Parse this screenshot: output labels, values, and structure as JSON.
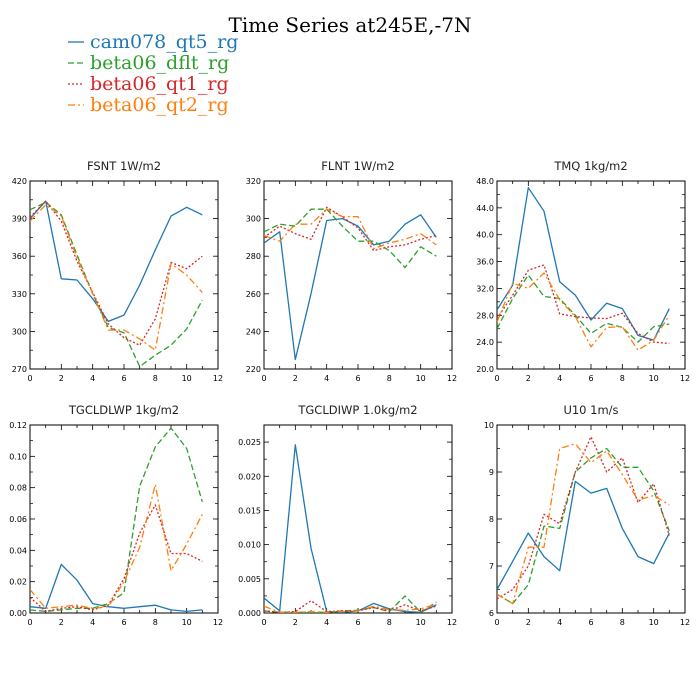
{
  "title": "Time Series at245E,-7N",
  "colors": {
    "cam078_qt5_rg": "#1f77b4",
    "beta06_dflt_rg": "#2ca02c",
    "beta06_qt1_rg": "#d62728",
    "beta06_qt2_rg": "#ff7f0e"
  },
  "legend": [
    {
      "name": "cam078_qt5_rg",
      "color": "#1f77b4",
      "dash": "solid"
    },
    {
      "name": "beta06_dflt_rg",
      "color": "#2ca02c",
      "dash": "dashed"
    },
    {
      "name": "beta06_qt1_rg",
      "color": "#d62728",
      "dash": "dotted"
    },
    {
      "name": "beta06_qt2_rg",
      "color": "#ff7f0e",
      "dash": "dashdot"
    }
  ],
  "chart_data": [
    {
      "type": "line",
      "title": "FSNT  1W/m2",
      "x": [
        0,
        1,
        2,
        3,
        4,
        5,
        6,
        7,
        8,
        9,
        10,
        11
      ],
      "xlim": [
        0,
        12
      ],
      "xticks": [
        "0",
        "2",
        "4",
        "6",
        "8",
        "10",
        "12"
      ],
      "ylim": [
        270,
        420
      ],
      "yticks": [
        "270",
        "300",
        "330",
        "360",
        "390",
        "420"
      ],
      "series": [
        {
          "name": "cam078_qt5_rg",
          "values": [
            390,
            404,
            342,
            341,
            326,
            308,
            313,
            337,
            365,
            392,
            399,
            393
          ]
        },
        {
          "name": "beta06_dflt_rg",
          "values": [
            397,
            403,
            393,
            361,
            330,
            303,
            299,
            272,
            281,
            289,
            302,
            325
          ]
        },
        {
          "name": "beta06_qt1_rg",
          "values": [
            391,
            404,
            388,
            356,
            331,
            306,
            295,
            289,
            310,
            355,
            350,
            360
          ]
        },
        {
          "name": "beta06_qt2_rg",
          "values": [
            388,
            401,
            392,
            359,
            330,
            301,
            301,
            294,
            285,
            354,
            345,
            331
          ]
        }
      ]
    },
    {
      "type": "line",
      "title": "FLNT  1W/m2",
      "x": [
        0,
        1,
        2,
        3,
        4,
        5,
        6,
        7,
        8,
        9,
        10,
        11
      ],
      "xlim": [
        0,
        12
      ],
      "xticks": [
        "0",
        "2",
        "4",
        "6",
        "8",
        "10",
        "12"
      ],
      "ylim": [
        220,
        320
      ],
      "yticks": [
        "220",
        "240",
        "260",
        "280",
        "300",
        "320"
      ],
      "series": [
        {
          "name": "cam078_qt5_rg",
          "values": [
            287,
            293,
            225,
            260,
            299,
            300,
            296,
            286,
            288,
            297,
            302,
            290
          ]
        },
        {
          "name": "beta06_dflt_rg",
          "values": [
            293,
            297,
            296,
            305,
            305,
            296,
            288,
            288,
            283,
            274,
            285,
            280
          ]
        },
        {
          "name": "beta06_qt1_rg",
          "values": [
            290,
            296,
            292,
            289,
            306,
            301,
            295,
            283,
            285,
            286,
            289,
            291
          ]
        },
        {
          "name": "beta06_qt2_rg",
          "values": [
            291,
            288,
            297,
            297,
            305,
            301,
            301,
            284,
            287,
            289,
            292,
            286
          ]
        }
      ]
    },
    {
      "type": "line",
      "title": "TMQ  1kg/m2",
      "x": [
        0,
        1,
        2,
        3,
        4,
        5,
        6,
        7,
        8,
        9,
        10,
        11
      ],
      "xlim": [
        0,
        12
      ],
      "xticks": [
        "0",
        "2",
        "4",
        "6",
        "8",
        "10",
        "12"
      ],
      "ylim": [
        20.0,
        48.0
      ],
      "yticks": [
        "20.0",
        "24.0",
        "28.0",
        "32.0",
        "36.0",
        "40.0",
        "44.0",
        "48.0"
      ],
      "series": [
        {
          "name": "cam078_qt5_rg",
          "values": [
            28.8,
            32.5,
            47.0,
            43.5,
            33.0,
            31.0,
            27.3,
            29.8,
            29.0,
            25.0,
            24.3,
            29.0
          ]
        },
        {
          "name": "beta06_dflt_rg",
          "values": [
            26.0,
            30.5,
            34.0,
            30.8,
            30.5,
            28.0,
            25.3,
            26.8,
            26.2,
            24.0,
            26.3,
            26.7
          ]
        },
        {
          "name": "beta06_qt1_rg",
          "values": [
            27.5,
            31.0,
            34.7,
            35.5,
            28.2,
            27.8,
            27.6,
            27.5,
            28.3,
            25.3,
            24.0,
            23.8
          ]
        },
        {
          "name": "beta06_qt2_rg",
          "values": [
            27.0,
            32.8,
            32.0,
            34.3,
            30.3,
            27.8,
            23.3,
            26.2,
            26.3,
            22.8,
            24.3,
            28.0
          ]
        }
      ]
    },
    {
      "type": "line",
      "title": "TGCLDLWP  1kg/m2",
      "x": [
        0,
        1,
        2,
        3,
        4,
        5,
        6,
        7,
        8,
        9,
        10,
        11
      ],
      "xlim": [
        0,
        12
      ],
      "xticks": [
        "0",
        "2",
        "4",
        "6",
        "8",
        "10",
        "12"
      ],
      "ylim": [
        0.0,
        0.12
      ],
      "yticks": [
        "0.00",
        "0.02",
        "0.04",
        "0.06",
        "0.08",
        "0.10",
        "0.12"
      ],
      "series": [
        {
          "name": "cam078_qt5_rg",
          "values": [
            0.004,
            0.003,
            0.031,
            0.021,
            0.006,
            0.004,
            0.003,
            0.004,
            0.005,
            0.002,
            0.001,
            0.002
          ]
        },
        {
          "name": "beta06_dflt_rg",
          "values": [
            0.002,
            0.001,
            0.002,
            0.003,
            0.003,
            0.006,
            0.013,
            0.081,
            0.106,
            0.118,
            0.105,
            0.071
          ]
        },
        {
          "name": "beta06_qt1_rg",
          "values": [
            0.01,
            0.001,
            0.003,
            0.004,
            0.002,
            0.005,
            0.022,
            0.051,
            0.069,
            0.038,
            0.038,
            0.033
          ]
        },
        {
          "name": "beta06_qt2_rg",
          "values": [
            0.015,
            0.003,
            0.004,
            0.005,
            0.003,
            0.004,
            0.02,
            0.042,
            0.082,
            0.027,
            0.044,
            0.063
          ]
        }
      ]
    },
    {
      "type": "line",
      "title": "TGCLDIWP  1.0kg/m2",
      "x": [
        0,
        1,
        2,
        3,
        4,
        5,
        6,
        7,
        8,
        9,
        10,
        11
      ],
      "xlim": [
        0,
        12
      ],
      "xticks": [
        "0",
        "2",
        "4",
        "6",
        "8",
        "10",
        "12"
      ],
      "ylim": [
        0.0,
        0.0275
      ],
      "yticks": [
        "0.000",
        "0.005",
        "0.010",
        "0.015",
        "0.020",
        "0.025"
      ],
      "ytickvals": [
        0.0,
        0.005,
        0.01,
        0.015,
        0.02,
        0.025
      ],
      "series": [
        {
          "name": "cam078_qt5_rg",
          "values": [
            0.0022,
            0.0003,
            0.0246,
            0.0095,
            0.0002,
            0.0001,
            0.0003,
            0.0014,
            0.0006,
            0.0002,
            0.0001,
            0.0012
          ]
        },
        {
          "name": "beta06_dflt_rg",
          "values": [
            0.0003,
            0.0001,
            0.0001,
            0.0001,
            0.0001,
            0.0003,
            0.0004,
            0.0008,
            0.0002,
            0.0025,
            0.0001,
            0.0016
          ]
        },
        {
          "name": "beta06_qt1_rg",
          "values": [
            0.0003,
            0.0001,
            0.0002,
            0.0018,
            0.0002,
            0.0003,
            0.0003,
            0.0008,
            0.0003,
            0.0012,
            0.0003,
            0.001
          ]
        },
        {
          "name": "beta06_qt2_rg",
          "values": [
            0.001,
            0.0001,
            0.0001,
            0.0002,
            0.0001,
            0.0002,
            0.0003,
            0.001,
            0.0005,
            0.0004,
            0.0006,
            0.0013
          ]
        }
      ]
    },
    {
      "type": "line",
      "title": "U10  1m/s",
      "x": [
        0,
        1,
        2,
        3,
        4,
        5,
        6,
        7,
        8,
        9,
        10,
        11
      ],
      "xlim": [
        0,
        12
      ],
      "xticks": [
        "0",
        "2",
        "4",
        "6",
        "8",
        "10",
        "12"
      ],
      "ylim": [
        6,
        10
      ],
      "yticks": [
        "6",
        "7",
        "8",
        "9",
        "10"
      ],
      "series": [
        {
          "name": "cam078_qt5_rg",
          "values": [
            6.5,
            7.1,
            7.7,
            7.2,
            6.9,
            8.8,
            8.55,
            8.65,
            7.8,
            7.2,
            7.05,
            7.7
          ]
        },
        {
          "name": "beta06_dflt_rg",
          "values": [
            6.4,
            6.2,
            6.6,
            7.85,
            7.8,
            9.0,
            9.3,
            9.5,
            9.1,
            9.1,
            8.6,
            7.75
          ]
        },
        {
          "name": "beta06_qt1_rg",
          "values": [
            6.3,
            6.5,
            7.0,
            8.1,
            7.9,
            9.0,
            9.75,
            9.0,
            9.3,
            8.35,
            8.75,
            7.65
          ]
        },
        {
          "name": "beta06_qt2_rg",
          "values": [
            6.4,
            6.2,
            7.4,
            7.4,
            9.5,
            9.6,
            9.2,
            9.45,
            8.95,
            8.4,
            8.5,
            8.3
          ]
        }
      ]
    }
  ]
}
